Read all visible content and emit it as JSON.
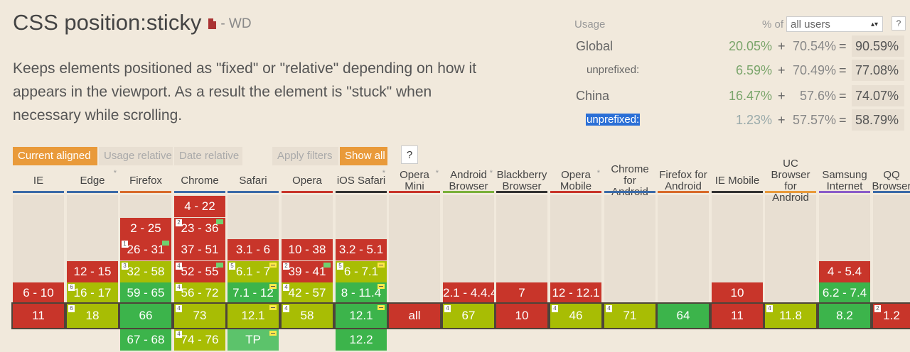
{
  "feature": {
    "title": "CSS position:sticky",
    "status": "- WD",
    "description": "Keeps elements positioned as \"fixed\" or \"relative\" depending on how it appears in the viewport. As a result the element is \"stuck\" when necessary while scrolling."
  },
  "usage": {
    "label": "Usage",
    "percent_of": "% of",
    "selector": "all users",
    "help": "?",
    "rows": [
      {
        "name": "Global",
        "sub": false,
        "a": "20.05%",
        "plus": "+",
        "b": "70.54%",
        "eq": "=",
        "total": "90.59%"
      },
      {
        "name": "unprefixed:",
        "sub": true,
        "a": "6.59%",
        "plus": "+",
        "b": "70.49%",
        "eq": "=",
        "total": "77.08%"
      },
      {
        "name": "China",
        "sub": false,
        "a": "16.47%",
        "plus": "+",
        "b": "57.6%",
        "eq": "=",
        "total": "74.07%"
      },
      {
        "name": "unprefixed:",
        "sub": true,
        "a": "1.23%",
        "plus": "+",
        "b": "57.57%",
        "eq": "=",
        "total": "58.79%"
      }
    ]
  },
  "toolbar": {
    "current_aligned": "Current aligned",
    "usage_relative": "Usage relative",
    "date_relative": "Date relative",
    "apply_filters": "Apply filters",
    "show_all": "Show all",
    "help": "?"
  },
  "colors": {
    "supported": "#3cb44b",
    "partial": "#a8bd04",
    "unsupported": "#c8352a",
    "accent": "#e99a3a"
  },
  "browsers": [
    {
      "name": "IE",
      "color": "#3b6aa8",
      "cells": [
        {
          "v": "6 - 10",
          "s": "n"
        }
      ],
      "current": {
        "v": "11",
        "s": "n"
      },
      "future": []
    },
    {
      "name": "Edge",
      "color": "#3b6aa8",
      "star": "*",
      "cells": [
        {
          "v": "12 - 15",
          "s": "n"
        },
        {
          "v": "16 - 17",
          "s": "a",
          "note": "6"
        }
      ],
      "current": {
        "v": "18",
        "s": "a",
        "note": "6"
      },
      "future": []
    },
    {
      "name": "Firefox",
      "color": "#d86a2a",
      "cells": [
        {
          "v": "2 - 25",
          "s": "n"
        },
        {
          "v": "26 - 31",
          "s": "n",
          "note": "1",
          "flag": "green"
        },
        {
          "v": "32 - 58",
          "s": "a",
          "note": "3"
        },
        {
          "v": "59 - 65",
          "s": "y"
        }
      ],
      "current": {
        "v": "66",
        "s": "y"
      },
      "future": [
        {
          "v": "67 - 68",
          "s": "y"
        }
      ]
    },
    {
      "name": "Chrome",
      "color": "#3b6aa8",
      "cells": [
        {
          "v": "4 - 22",
          "s": "n"
        },
        {
          "v": "23 - 36",
          "s": "n",
          "note": "2",
          "flag": "green"
        },
        {
          "v": "37 - 51",
          "s": "n"
        },
        {
          "v": "52 - 55",
          "s": "n",
          "note": "4",
          "flag": "green"
        },
        {
          "v": "56 - 72",
          "s": "a",
          "note": "4"
        }
      ],
      "current": {
        "v": "73",
        "s": "a",
        "note": "4"
      },
      "future": [
        {
          "v": "74 - 76",
          "s": "a",
          "note": "4"
        }
      ]
    },
    {
      "name": "Safari",
      "color": "#3b6aa8",
      "cells": [
        {
          "v": "3.1 - 6",
          "s": "n"
        },
        {
          "v": "6.1 - 7",
          "s": "a",
          "note": "5",
          "flag": "yellow"
        },
        {
          "v": "7.1 - 12",
          "s": "y",
          "flag": "yellow"
        }
      ],
      "current": {
        "v": "12.1",
        "s": "a",
        "flag": "yellow"
      },
      "future": [
        {
          "v": "TP",
          "s": "tp",
          "flag": "yellow"
        }
      ]
    },
    {
      "name": "Opera",
      "color": "#c8352a",
      "cells": [
        {
          "v": "10 - 38",
          "s": "n"
        },
        {
          "v": "39 - 41",
          "s": "n",
          "note": "2",
          "flag": "green"
        },
        {
          "v": "42 - 57",
          "s": "a",
          "note": "4"
        }
      ],
      "current": {
        "v": "58",
        "s": "a",
        "note": "4"
      },
      "future": []
    },
    {
      "name": "iOS Safari",
      "color": "#333333",
      "star": "*",
      "cells": [
        {
          "v": "3.2 - 5.1",
          "s": "n"
        },
        {
          "v": "6 - 7.1",
          "s": "a",
          "note": "5",
          "flag": "yellow"
        },
        {
          "v": "8 - 11.4",
          "s": "y",
          "flag": "yellow"
        }
      ],
      "current": {
        "v": "12.1",
        "s": "y",
        "flag": "yellow"
      },
      "future": [
        {
          "v": "12.2",
          "s": "y"
        }
      ]
    },
    {
      "name": "Opera Mini",
      "color": "#c8352a",
      "star": "*",
      "cells": [],
      "current": {
        "v": "all",
        "s": "n"
      },
      "future": []
    },
    {
      "name": "Android Browser",
      "color": "#7ab03a",
      "star": "*",
      "cells": [
        {
          "v": "2.1 - 4.4.4",
          "s": "n"
        }
      ],
      "current": {
        "v": "67",
        "s": "a",
        "note": "4"
      },
      "future": []
    },
    {
      "name": "Blackberry Browser",
      "color": "#333333",
      "cells": [
        {
          "v": "7",
          "s": "n"
        }
      ],
      "current": {
        "v": "10",
        "s": "n"
      },
      "future": []
    },
    {
      "name": "Opera Mobile",
      "color": "#c8352a",
      "star": "*",
      "cells": [
        {
          "v": "12 - 12.1",
          "s": "n"
        }
      ],
      "current": {
        "v": "46",
        "s": "a",
        "note": "4"
      },
      "future": []
    },
    {
      "name": "Chrome for Android",
      "color": "#3b6aa8",
      "cells": [],
      "current": {
        "v": "71",
        "s": "a",
        "note": "4"
      },
      "future": []
    },
    {
      "name": "Firefox for Android",
      "color": "#d86a2a",
      "cells": [],
      "current": {
        "v": "64",
        "s": "y"
      },
      "future": []
    },
    {
      "name": "IE Mobile",
      "color": "#333333",
      "cells": [
        {
          "v": "10",
          "s": "n"
        }
      ],
      "current": {
        "v": "11",
        "s": "n"
      },
      "future": []
    },
    {
      "name": "UC Browser for Android",
      "color": "#e99a3a",
      "cells": [],
      "current": {
        "v": "11.8",
        "s": "a",
        "note": "4"
      },
      "future": []
    },
    {
      "name": "Samsung Internet",
      "color": "#8a5cc8",
      "cells": [
        {
          "v": "4 - 5.4",
          "s": "n"
        },
        {
          "v": "6.2 - 7.4",
          "s": "y"
        }
      ],
      "current": {
        "v": "8.2",
        "s": "y"
      },
      "future": []
    },
    {
      "name": "QQ Browser",
      "color": "#3b6aa8",
      "cells": [],
      "current": {
        "v": "1.2",
        "s": "n",
        "note": "2"
      },
      "future": []
    }
  ]
}
